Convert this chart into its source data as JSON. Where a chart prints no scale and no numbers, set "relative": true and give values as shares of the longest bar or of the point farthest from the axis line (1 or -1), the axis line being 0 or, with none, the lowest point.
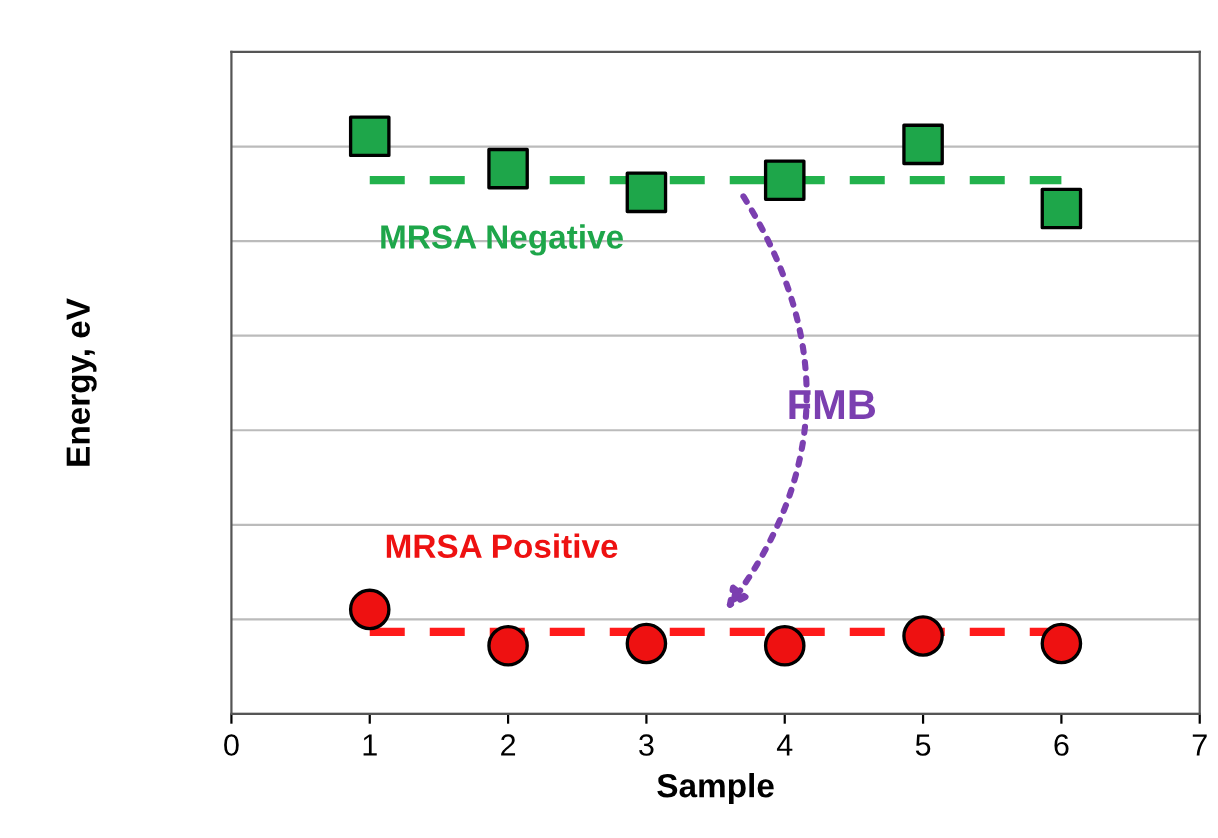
{
  "chart_data": {
    "type": "scatter",
    "relative": true,
    "xlabel": "Sample",
    "ylabel": "Energy, eV",
    "xlim": [
      0,
      7
    ],
    "xticks": [
      0,
      1,
      2,
      3,
      4,
      5,
      6,
      7
    ],
    "grid": "y",
    "tick_labels": "x",
    "series": [
      {
        "marker": "square",
        "color": "#1ea64a",
        "x": [
          1,
          2,
          3,
          4,
          5,
          6
        ],
        "values": [
          1,
          0.944,
          0.903,
          0.924,
          0.986,
          0.875
        ]
      },
      {
        "marker": "circle",
        "color": "#ee1111",
        "x": [
          1,
          2,
          3,
          4,
          5,
          6
        ],
        "values": [
          0.181,
          0.118,
          0.122,
          0.118,
          0.135,
          0.122
        ]
      },
      {
        "type": "line",
        "line_style": "dashed",
        "color": "#22b24c",
        "x": [
          1,
          6
        ],
        "values": [
          0.924,
          0.924
        ]
      },
      {
        "type": "line",
        "line_style": "dashed",
        "color": "#ff1a1a",
        "x": [
          1,
          6
        ],
        "values": [
          0.142,
          0.142
        ]
      }
    ],
    "annotations": [
      "MRSA Negative",
      "MRSA Positive",
      "FMB"
    ]
  }
}
